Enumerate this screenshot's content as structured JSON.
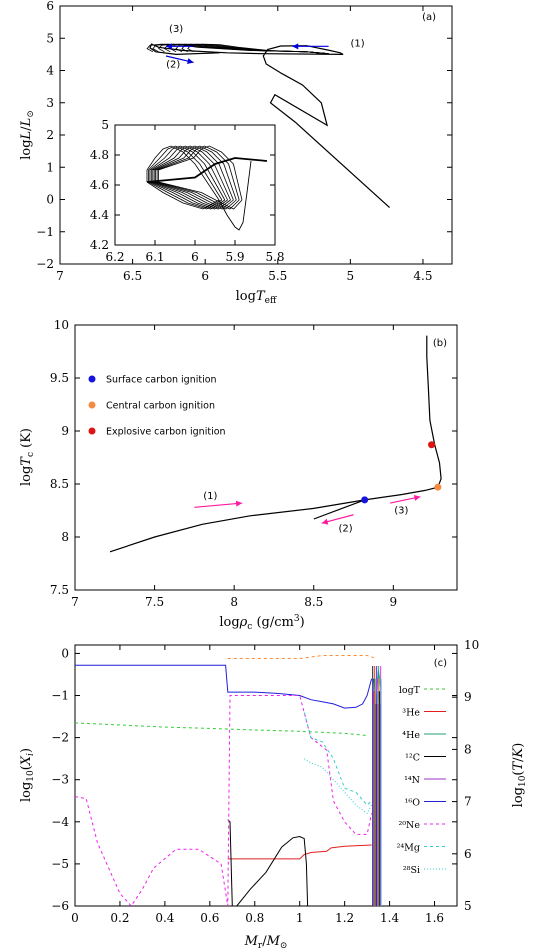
{
  "chart_data": [
    {
      "type": "line",
      "panel_label": "(a)",
      "xlabel": "logT_eff",
      "ylabel": "log L/L⊙",
      "xlim": [
        7,
        4.3
      ],
      "ylim": [
        -2,
        6
      ],
      "x_ticks": [
        "7",
        "6.5",
        "6",
        "5.5",
        "5",
        "4.5"
      ],
      "y_ticks": [
        "−2",
        "−1",
        "0",
        "1",
        "2",
        "3",
        "4",
        "5",
        "6"
      ],
      "series": [
        {
          "x": [
            4.73,
            5.38,
            5.55,
            5.52,
            5.16,
            5.2,
            5.33,
            5.47,
            5.58,
            5.6,
            5.57,
            5.48,
            5.3,
            5.14,
            5.07,
            5.05,
            5.6,
            5.85,
            6.15,
            6.32,
            6.37,
            6.38,
            6.34,
            6.2,
            5.9
          ],
          "y": [
            -0.25,
            2.4,
            3.0,
            3.25,
            2.3,
            3.0,
            3.55,
            3.9,
            4.2,
            4.45,
            4.65,
            4.76,
            4.77,
            4.62,
            4.55,
            4.5,
            4.52,
            4.55,
            4.62,
            4.72,
            4.82,
            4.7,
            4.58,
            4.5,
            4.55
          ]
        }
      ],
      "annotations": [
        {
          "text": "(1)",
          "x": 4.95,
          "y": 4.75
        },
        {
          "text": "(2)",
          "x": 6.22,
          "y": 4.1
        },
        {
          "text": "(3)",
          "x": 6.2,
          "y": 5.2
        }
      ],
      "arrows": [
        {
          "from": [
            5.15,
            4.75
          ],
          "to": [
            5.4,
            4.75
          ],
          "color": "#0000dd"
        },
        {
          "from": [
            6.08,
            4.75
          ],
          "to": [
            6.27,
            4.75
          ],
          "color": "#0000dd"
        },
        {
          "from": [
            6.27,
            4.45
          ],
          "to": [
            6.08,
            4.25
          ],
          "color": "#0000dd"
        }
      ],
      "inset": {
        "xlim": [
          6.2,
          5.8
        ],
        "ylim": [
          4.2,
          5.0
        ],
        "x_ticks": [
          "6.2",
          "6.1",
          "6",
          "5.9",
          "5.8"
        ],
        "y_ticks": [
          "4.2",
          "4.4",
          "4.6",
          "4.8",
          "5"
        ]
      }
    },
    {
      "type": "line",
      "panel_label": "(b)",
      "xlabel": "logρc (g/cm³)",
      "ylabel": "log Tc (K)",
      "xlim": [
        7,
        9.4
      ],
      "ylim": [
        7.5,
        10
      ],
      "x_ticks": [
        "7",
        "7.5",
        "8",
        "8.5",
        "9"
      ],
      "y_ticks": [
        "7.5",
        "8",
        "8.5",
        "9",
        "9.5",
        "10"
      ],
      "series": [
        {
          "x": [
            7.22,
            7.5,
            7.8,
            8.1,
            8.5,
            8.82,
            9.05,
            9.2,
            9.28,
            9.3,
            9.29,
            9.26,
            9.23,
            9.22,
            9.21,
            9.21
          ],
          "y": [
            7.86,
            8.0,
            8.12,
            8.2,
            8.27,
            8.35,
            8.4,
            8.44,
            8.47,
            8.55,
            8.7,
            8.87,
            9.1,
            9.4,
            9.7,
            9.9
          ]
        },
        {
          "x": [
            8.5,
            8.82
          ],
          "y": [
            8.17,
            8.35
          ]
        }
      ],
      "legend": [
        {
          "label": "Surface carbon ignition",
          "color": "#1414dc"
        },
        {
          "label": "Central carbon ignition",
          "color": "#f58a42"
        },
        {
          "label": "Explosive carbon ignition",
          "color": "#dc1414"
        }
      ],
      "points": [
        {
          "label": "Surface carbon ignition",
          "x": 8.82,
          "y": 8.35
        },
        {
          "label": "Central carbon ignition",
          "x": 9.28,
          "y": 8.47
        },
        {
          "label": "Explosive carbon ignition",
          "x": 9.24,
          "y": 8.87
        }
      ],
      "annotations": [
        {
          "text": "(1)",
          "x": 7.85,
          "y": 8.36
        },
        {
          "text": "(2)",
          "x": 8.7,
          "y": 8.05
        },
        {
          "text": "(3)",
          "x": 9.05,
          "y": 8.22
        }
      ],
      "arrows": [
        {
          "from": [
            7.75,
            8.28
          ],
          "to": [
            8.05,
            8.32
          ],
          "color": "#ff1aa0"
        },
        {
          "from": [
            8.75,
            8.21
          ],
          "to": [
            8.55,
            8.13
          ],
          "color": "#ff1aa0"
        },
        {
          "from": [
            8.98,
            8.32
          ],
          "to": [
            9.17,
            8.38
          ],
          "color": "#ff1aa0"
        }
      ]
    },
    {
      "type": "line",
      "panel_label": "(c)",
      "xlabel": "Mr/M⊙",
      "ylabel": "log10(Xi)",
      "y2label": "log10(T/K)",
      "xlim": [
        0,
        1.7
      ],
      "ylim": [
        -6,
        0.2
      ],
      "y2lim": [
        5,
        10
      ],
      "x_ticks": [
        "0",
        "0.2",
        "0.4",
        "0.6",
        "0.8",
        "1",
        "1.2",
        "1.4",
        "1.6"
      ],
      "y_ticks": [
        "−6",
        "−5",
        "−4",
        "−3",
        "−2",
        "−1",
        "0"
      ],
      "y2_ticks": [
        "5",
        "6",
        "7",
        "8",
        "9",
        "10"
      ],
      "series": [
        {
          "name": "logT",
          "color": "#33cc33",
          "dash": "3,3",
          "x": [
            0,
            0.2,
            0.4,
            0.6,
            0.8,
            1.0,
            1.2,
            1.3
          ],
          "y": [
            -1.65,
            -1.7,
            -1.75,
            -1.78,
            -1.82,
            -1.85,
            -1.9,
            -1.95
          ]
        },
        {
          "name": "3He",
          "color": "#e02020",
          "x": [
            0.68,
            1.0,
            1.02,
            1.05,
            1.12,
            1.14,
            1.2,
            1.32
          ],
          "y": [
            -4.88,
            -4.88,
            -4.78,
            -4.73,
            -4.7,
            -4.62,
            -4.58,
            -4.55
          ]
        },
        {
          "name": "4He",
          "color": "#20a070",
          "x": [
            1.33,
            1.34,
            1.35,
            1.36
          ],
          "y": [
            -0.6,
            -1.2,
            -0.4,
            -0.8
          ]
        },
        {
          "name": "12C",
          "color": "#000000",
          "x": [
            0.68,
            0.69,
            0.7,
            0.72,
            0.78,
            0.85,
            0.92,
            0.97,
            1.0,
            1.02,
            1.03,
            1.035
          ],
          "y": [
            -3.95,
            -4.0,
            -6.0,
            -6.0,
            -5.6,
            -5.2,
            -4.6,
            -4.38,
            -4.35,
            -4.4,
            -5.0,
            -6.0
          ]
        },
        {
          "name": "14N",
          "color": "#9933cc",
          "x": [
            1.33,
            1.34,
            1.35
          ],
          "y": [
            -3.8,
            -1.6,
            -0.9
          ]
        },
        {
          "name": "16O",
          "color": "#2020dd",
          "x": [
            0,
            0.1,
            0.3,
            0.5,
            0.67,
            0.68,
            0.8,
            0.9,
            1.0,
            1.05,
            1.1,
            1.15,
            1.2,
            1.25,
            1.28,
            1.3,
            1.32
          ],
          "y": [
            -0.28,
            -0.28,
            -0.28,
            -0.28,
            -0.28,
            -0.92,
            -0.92,
            -0.95,
            -1.0,
            -1.1,
            -1.15,
            -1.2,
            -1.3,
            -1.28,
            -1.2,
            -1.0,
            -0.6
          ]
        },
        {
          "name": "20Ne",
          "color": "#ee22ee",
          "dash": "3,3",
          "x": [
            0,
            0.05,
            0.1,
            0.2,
            0.25,
            0.3,
            0.35,
            0.45,
            0.55,
            0.65,
            0.68,
            0.69,
            0.8,
            1.0,
            1.05,
            1.12,
            1.15,
            1.2,
            1.25,
            1.3,
            1.32
          ],
          "y": [
            -3.4,
            -3.45,
            -4.5,
            -5.7,
            -6.0,
            -5.6,
            -5.1,
            -4.65,
            -4.65,
            -5.0,
            -6.0,
            -1.0,
            -1.0,
            -1.0,
            -2.0,
            -2.3,
            -3.5,
            -4.0,
            -4.3,
            -4.3,
            -3.8
          ]
        },
        {
          "name": "24Mg",
          "color": "#33cccc",
          "dash": "3,3",
          "x": [
            1.02,
            1.05,
            1.1,
            1.15,
            1.2,
            1.25,
            1.3,
            1.32
          ],
          "y": [
            -1.4,
            -2.0,
            -2.1,
            -2.5,
            -3.2,
            -3.3,
            -3.6,
            -3.5
          ]
        },
        {
          "name": "28Si",
          "color": "#33cccc",
          "dash": "1,2",
          "x": [
            1.02,
            1.05,
            1.1,
            1.15,
            1.2,
            1.25,
            1.3,
            1.32
          ],
          "y": [
            -2.5,
            -2.6,
            -2.7,
            -3.0,
            -3.3,
            -3.6,
            -3.8,
            -3.6
          ]
        },
        {
          "name": "T (orange)",
          "color": "#ff8833",
          "dash": "3,3",
          "x": [
            0.68,
            0.8,
            1.0,
            1.1,
            1.2,
            1.3,
            1.33
          ],
          "y": [
            -0.12,
            -0.12,
            -0.12,
            -0.05,
            -0.05,
            -0.05,
            -0.1
          ]
        }
      ],
      "legend": [
        {
          "label": "logT",
          "color": "#33cc33",
          "dash": "3,3"
        },
        {
          "label": "³He",
          "color": "#e02020"
        },
        {
          "label": "⁴He",
          "color": "#20a070"
        },
        {
          "label": "¹²C",
          "color": "#000000"
        },
        {
          "label": "¹⁴N",
          "color": "#9933cc"
        },
        {
          "label": "¹⁶O",
          "color": "#2020dd"
        },
        {
          "label": "²⁰Ne",
          "color": "#ee22ee",
          "dash": "3,3"
        },
        {
          "label": "²⁴Mg",
          "color": "#33cccc",
          "dash": "3,3"
        },
        {
          "label": "²⁸Si",
          "color": "#33cccc",
          "dash": "1,2"
        }
      ]
    }
  ]
}
